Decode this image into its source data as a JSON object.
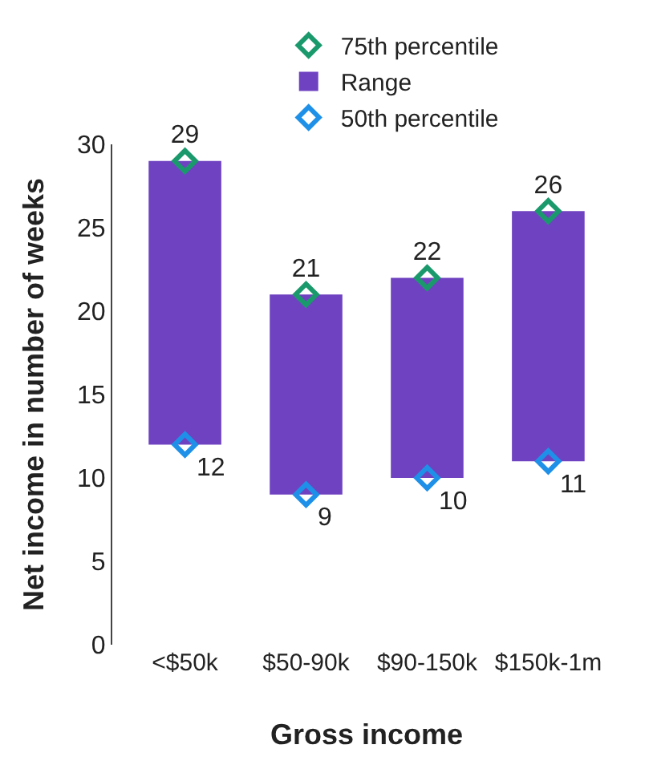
{
  "chart_data": {
    "type": "bar",
    "xlabel": "Gross income",
    "ylabel": "Net income in number of weeks",
    "categories": [
      "<$50k",
      "$50-90k",
      "$90-150k",
      "$150k-1m"
    ],
    "series": [
      {
        "name": "75th percentile",
        "type": "scatter",
        "color": "#1a9a6c",
        "values": [
          29,
          21,
          22,
          26
        ],
        "value_labels": [
          "29",
          "21",
          "22",
          "26"
        ]
      },
      {
        "name": "Range",
        "color": "#6f42c1",
        "values": [
          17,
          12,
          12,
          15
        ],
        "base": [
          12,
          9,
          10,
          11
        ]
      },
      {
        "name": "50th percentile",
        "type": "scatter",
        "color": "#1e90e8",
        "values": [
          12,
          9,
          10,
          11
        ],
        "value_labels": [
          "12",
          "9",
          "10",
          "11"
        ]
      }
    ],
    "ylim": [
      0,
      30
    ],
    "yticks": [
      0,
      5,
      10,
      15,
      20,
      25,
      30
    ],
    "marker": "diamond",
    "legend": "top"
  }
}
